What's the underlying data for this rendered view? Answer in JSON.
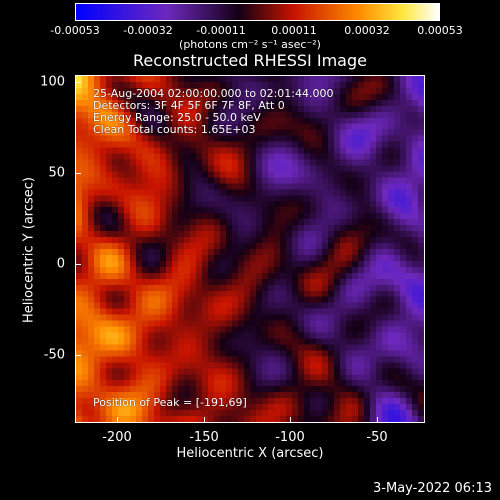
{
  "colorbar": {
    "ticks": [
      "-0.00053",
      "-0.00032",
      "-0.00011",
      "0.00011",
      "0.00032",
      "0.00053"
    ],
    "units": "(photons cm⁻² s⁻¹ asec⁻²)"
  },
  "title": "Reconstructed RHESSI Image",
  "info": {
    "line1": "25-Aug-2004 02:00:00.000 to 02:01:44.000",
    "line2": "Detectors: 3F 4F 5F 6F 7F 8F, Att 0",
    "line3": "Energy Range: 25.0 - 50.0 keV",
    "line4": "Clean      Total counts: 1.65E+03",
    "peak": "Position of Peak = [-191,69]"
  },
  "axes": {
    "xlabel": "Heliocentric X (arcsec)",
    "ylabel": "Heliocentric Y (arcsec)",
    "xticks": [
      "-200",
      "-150",
      "-100",
      "-50"
    ],
    "yticks": [
      "100",
      "50",
      "0",
      "-50"
    ]
  },
  "timestamp": "3-May-2022 06:13"
}
